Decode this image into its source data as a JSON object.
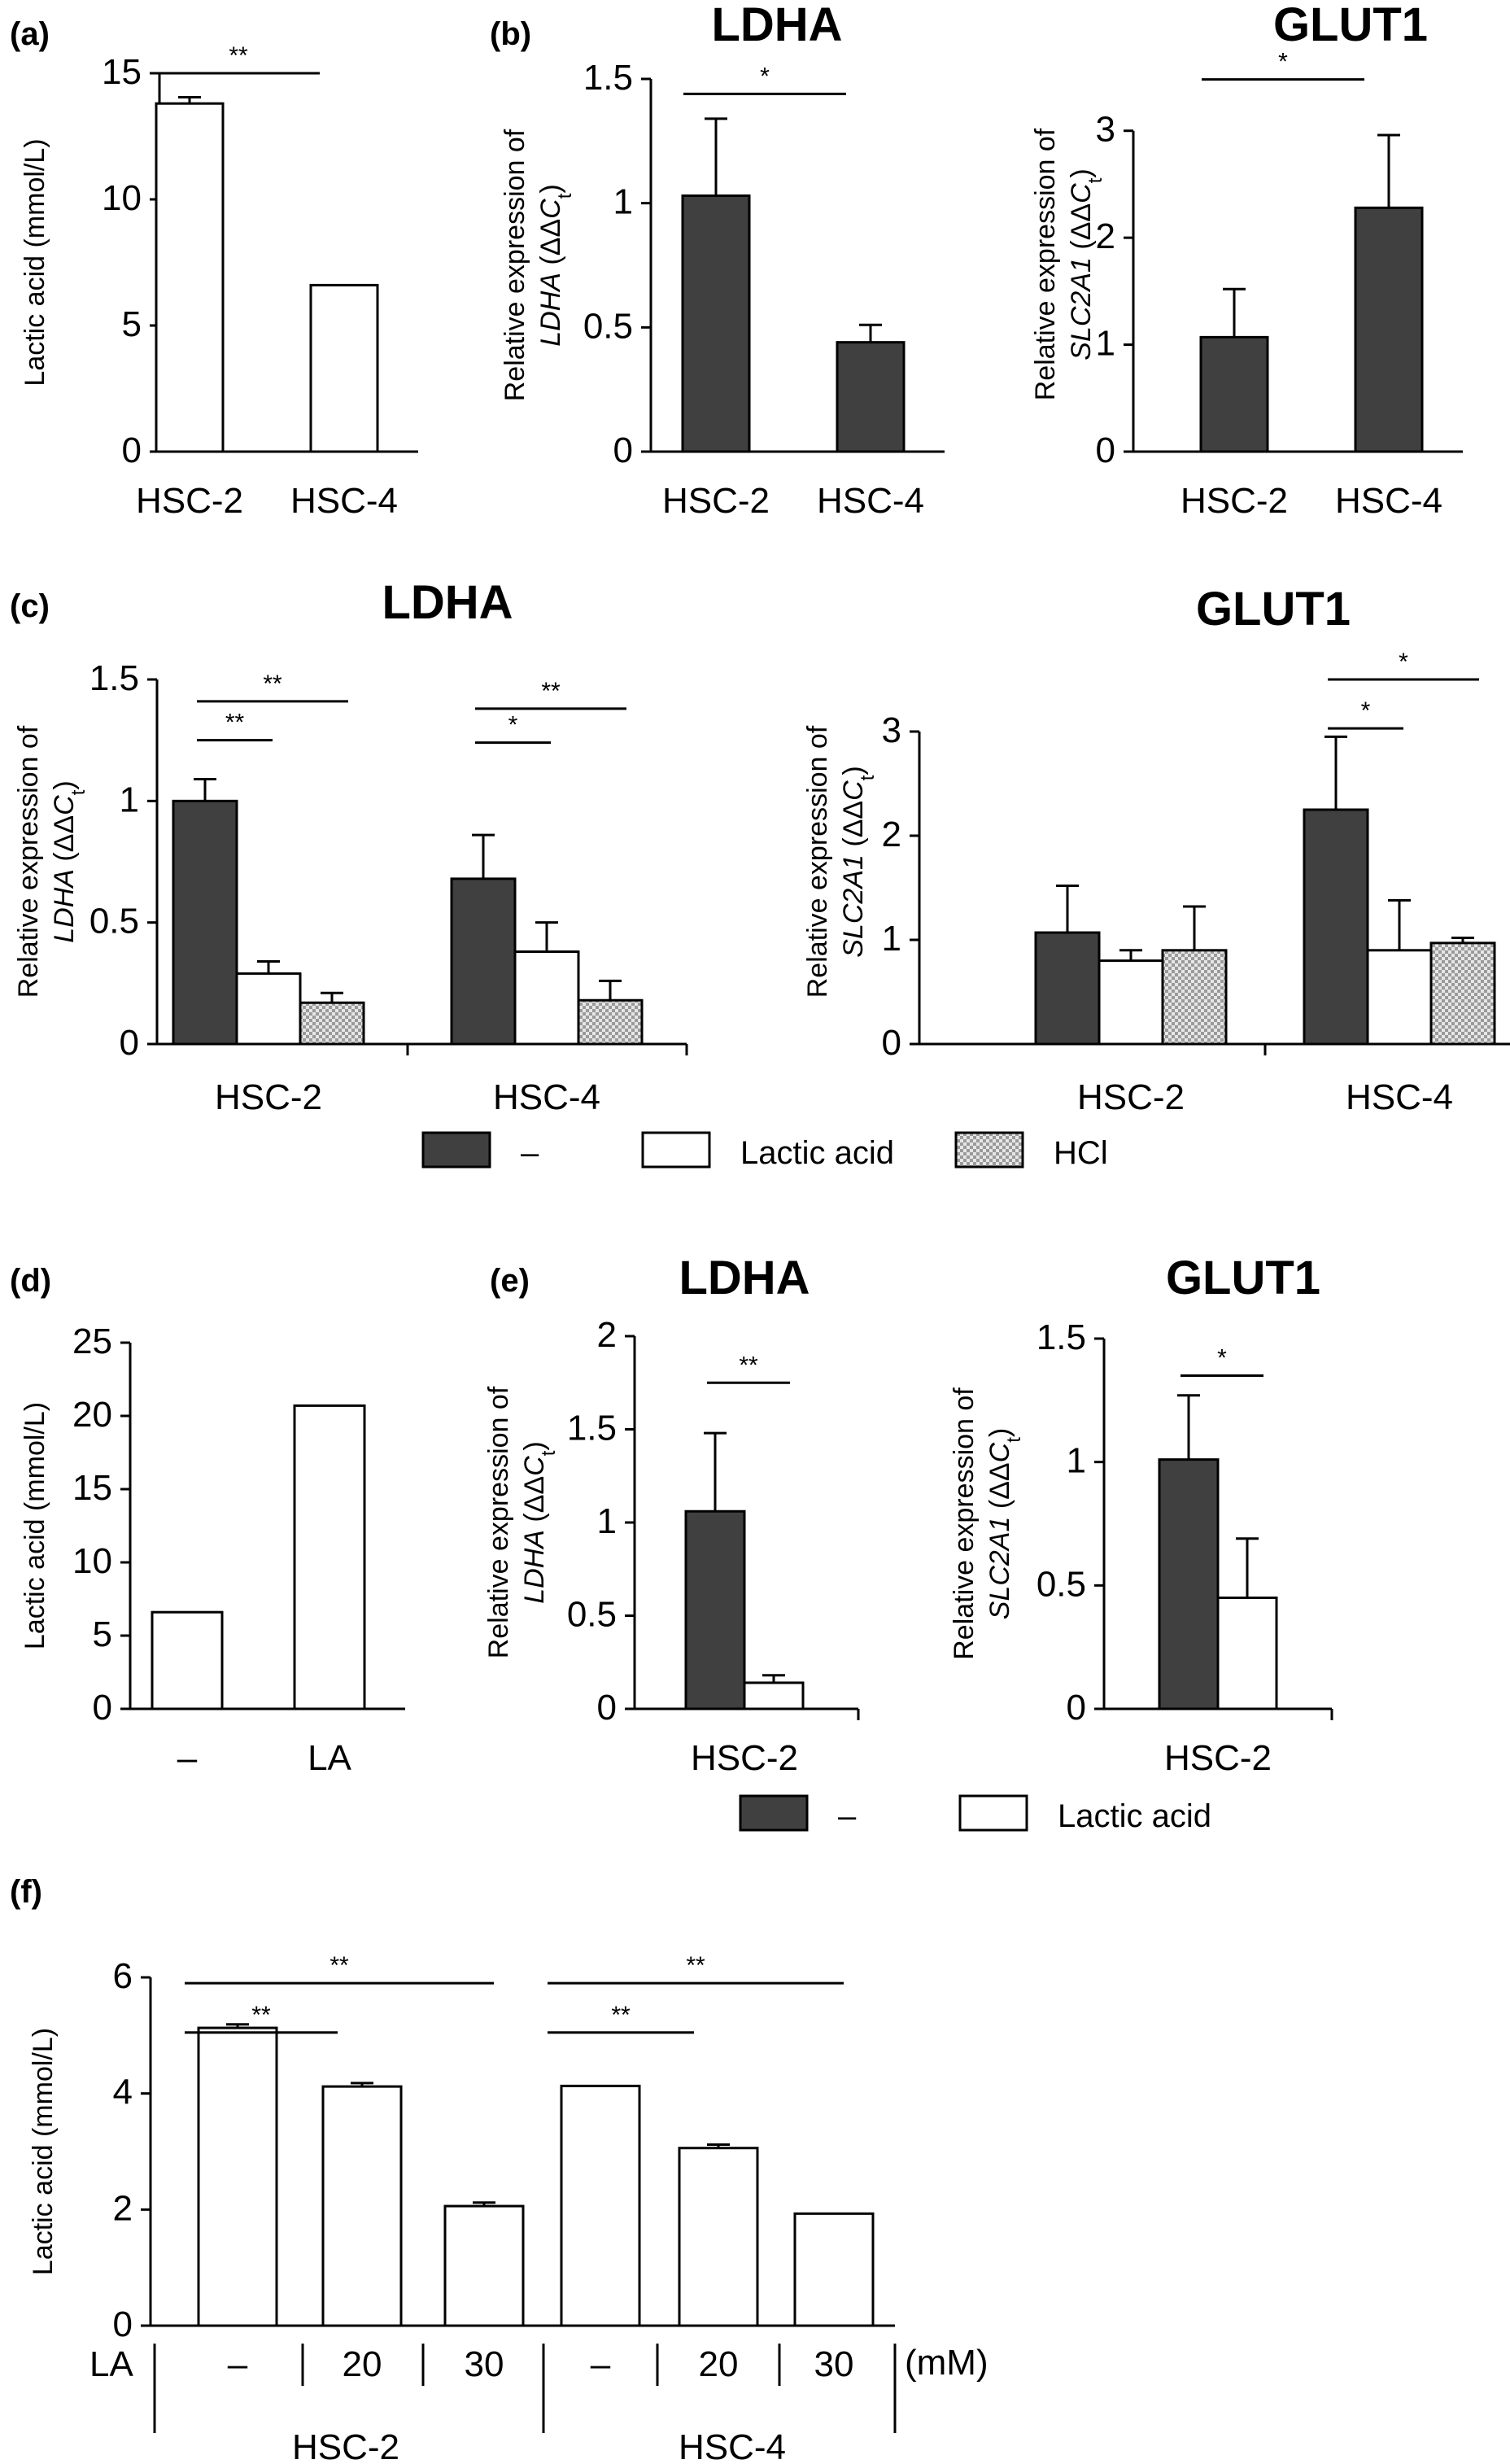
{
  "colors": {
    "dark": "#404040",
    "white": "#ffffff",
    "hcl_pattern": "#bdbdbd",
    "axis": "#000000"
  },
  "legend_c": [
    {
      "label": "–",
      "style": "dark"
    },
    {
      "label": "Lactic acid",
      "style": "white"
    },
    {
      "label": "HCl",
      "style": "hatch"
    }
  ],
  "legend_e": [
    {
      "label": "–",
      "style": "dark"
    },
    {
      "label": "Lactic acid",
      "style": "white"
    }
  ],
  "chart_data": [
    {
      "id": "a",
      "panel_label": "(a)",
      "type": "bar",
      "title": "",
      "ylabel": "Lactic acid (mmol/L)",
      "ylabel_prefix": "",
      "ylabel_italic": "",
      "ylim": [
        0,
        15
      ],
      "yticks": [
        0,
        5,
        10,
        15
      ],
      "ytick_labels": [
        "0",
        "5",
        "10",
        "15"
      ],
      "categories": [
        "HSC-2",
        "HSC-4"
      ],
      "xlabel": "",
      "series": [
        {
          "style": "white",
          "values": [
            13.8,
            6.6
          ],
          "errors": [
            0.25,
            0
          ]
        }
      ],
      "significance": [
        {
          "from": 0,
          "to": 1,
          "y": 15.0,
          "label": "**"
        }
      ]
    },
    {
      "id": "b1",
      "panel_label": "(b)",
      "type": "bar",
      "title": "LDHA",
      "ylabel": "Relative expression of",
      "ylabel_prefix": "",
      "ylabel_italic": "LDHA",
      "ylim": [
        0,
        1.5
      ],
      "yticks": [
        0,
        0.5,
        1,
        1.5
      ],
      "ytick_labels": [
        "0",
        "0.5",
        "1",
        "1.5"
      ],
      "categories": [
        "HSC-2",
        "HSC-4"
      ],
      "xlabel": "",
      "series": [
        {
          "style": "dark",
          "values": [
            1.03,
            0.44
          ],
          "errors": [
            0.31,
            0.07
          ]
        }
      ],
      "significance": [
        {
          "from": 0,
          "to": 1,
          "y": 1.44,
          "label": "*"
        }
      ]
    },
    {
      "id": "b2",
      "panel_label": "",
      "type": "bar",
      "title": "GLUT1",
      "ylabel": "Relative expression of",
      "ylabel_prefix": "",
      "ylabel_italic": "SLC2A1",
      "ylim": [
        0,
        3.5
      ],
      "yticks": [
        0,
        1,
        2,
        3
      ],
      "ytick_labels": [
        "0",
        "1",
        "2",
        "3"
      ],
      "categories": [
        "HSC-2",
        "HSC-4"
      ],
      "xlabel": "",
      "series": [
        {
          "style": "dark",
          "values": [
            1.07,
            2.28
          ],
          "errors": [
            0.45,
            0.68
          ]
        }
      ],
      "significance": [
        {
          "from": 0,
          "to": 1,
          "y": 3.48,
          "label": "*"
        }
      ]
    },
    {
      "id": "c1",
      "panel_label": "(c)",
      "type": "bar",
      "title": "LDHA",
      "ylabel": "Relative expression of",
      "ylabel_prefix": "",
      "ylabel_italic": "LDHA",
      "ylim": [
        0,
        1.5
      ],
      "yticks": [
        0,
        0.5,
        1,
        1.5
      ],
      "ytick_labels": [
        "0",
        "0.5",
        "1",
        "1.5"
      ],
      "categories": [
        "HSC-2",
        "HSC-4"
      ],
      "xlabel": "",
      "series": [
        {
          "name": "–",
          "style": "dark",
          "values": [
            1.0,
            0.68
          ],
          "errors": [
            0.09,
            0.18
          ]
        },
        {
          "name": "Lactic acid",
          "style": "white",
          "values": [
            0.29,
            0.38
          ],
          "errors": [
            0.05,
            0.12
          ]
        },
        {
          "name": "HCl",
          "style": "hatch",
          "values": [
            0.17,
            0.18
          ],
          "errors": [
            0.04,
            0.08
          ]
        }
      ],
      "significance": [
        {
          "group": 0,
          "from": 0,
          "to": 1,
          "y": 1.25,
          "label": "**"
        },
        {
          "group": 0,
          "from": 0,
          "to": 2,
          "y": 1.41,
          "label": "**"
        },
        {
          "group": 1,
          "from": 0,
          "to": 1,
          "y": 1.24,
          "label": "*"
        },
        {
          "group": 1,
          "from": 0,
          "to": 2,
          "y": 1.38,
          "label": "**"
        }
      ]
    },
    {
      "id": "c2",
      "panel_label": "",
      "type": "bar",
      "title": "GLUT1",
      "ylabel": "Relative expression of",
      "ylabel_prefix": "",
      "ylabel_italic": "SLC2A1",
      "ylim": [
        0,
        3.5
      ],
      "yticks": [
        0,
        1,
        2,
        3
      ],
      "ytick_labels": [
        "0",
        "1",
        "2",
        "3"
      ],
      "categories": [
        "HSC-2",
        "HSC-4"
      ],
      "xlabel": "",
      "series": [
        {
          "name": "–",
          "style": "dark",
          "values": [
            1.07,
            2.25
          ],
          "errors": [
            0.45,
            0.7
          ]
        },
        {
          "name": "Lactic acid",
          "style": "white",
          "values": [
            0.8,
            0.9
          ],
          "errors": [
            0.1,
            0.48
          ]
        },
        {
          "name": "HCl",
          "style": "hatch",
          "values": [
            0.9,
            0.97
          ],
          "errors": [
            0.42,
            0.05
          ]
        }
      ],
      "significance": [
        {
          "group": 1,
          "from": 0,
          "to": 1,
          "y": 3.03,
          "label": "*"
        },
        {
          "group": 1,
          "from": 0,
          "to": 2,
          "y": 3.5,
          "label": "*"
        }
      ]
    },
    {
      "id": "d",
      "panel_label": "(d)",
      "type": "bar",
      "title": "",
      "ylabel": "Lactic acid (mmol/L)",
      "ylabel_prefix": "",
      "ylabel_italic": "",
      "ylim": [
        0,
        25
      ],
      "yticks": [
        0,
        5,
        10,
        15,
        20,
        25
      ],
      "ytick_labels": [
        "0",
        "5",
        "10",
        "15",
        "20",
        "25"
      ],
      "categories": [
        "–",
        "LA"
      ],
      "xlabel": "",
      "series": [
        {
          "style": "white",
          "values": [
            6.6,
            20.7
          ],
          "errors": [
            0,
            0
          ]
        }
      ],
      "significance": []
    },
    {
      "id": "e1",
      "panel_label": "(e)",
      "type": "bar",
      "title": "LDHA",
      "ylabel": "Relative expression of",
      "ylabel_prefix": "",
      "ylabel_italic": "LDHA",
      "ylim": [
        0,
        2
      ],
      "yticks": [
        0,
        0.5,
        1,
        1.5,
        2
      ],
      "ytick_labels": [
        "0",
        "0.5",
        "1",
        "1.5",
        "2"
      ],
      "categories": [
        "HSC-2"
      ],
      "xlabel": "",
      "series": [
        {
          "name": "–",
          "style": "dark",
          "values": [
            1.06
          ],
          "errors": [
            0.42
          ]
        },
        {
          "name": "Lactic acid",
          "style": "white",
          "values": [
            0.14
          ],
          "errors": [
            0.04
          ]
        }
      ],
      "significance": [
        {
          "group": 0,
          "from": 0,
          "to": 1,
          "y": 1.75,
          "label": "**"
        }
      ]
    },
    {
      "id": "e2",
      "panel_label": "",
      "type": "bar",
      "title": "GLUT1",
      "ylabel": "Relative expression of",
      "ylabel_prefix": "",
      "ylabel_italic": "SLC2A1",
      "ylim": [
        0,
        1.5
      ],
      "yticks": [
        0,
        0.5,
        1,
        1.5
      ],
      "ytick_labels": [
        "0",
        "0.5",
        "1",
        "1.5"
      ],
      "categories": [
        "HSC-2"
      ],
      "xlabel": "",
      "series": [
        {
          "name": "–",
          "style": "dark",
          "values": [
            1.01
          ],
          "errors": [
            0.26
          ]
        },
        {
          "name": "Lactic acid",
          "style": "white",
          "values": [
            0.45
          ],
          "errors": [
            0.24
          ]
        }
      ],
      "significance": [
        {
          "group": 0,
          "from": 0,
          "to": 1,
          "y": 1.35,
          "label": "*"
        }
      ]
    },
    {
      "id": "f",
      "panel_label": "(f)",
      "type": "bar",
      "title": "",
      "ylabel": "Lactic acid (mmol/L)",
      "ylabel_prefix": "",
      "ylabel_italic": "",
      "ylim": [
        0,
        6
      ],
      "yticks": [
        0,
        2,
        4,
        6
      ],
      "ytick_labels": [
        "0",
        "2",
        "4",
        "6"
      ],
      "row_label": "LA",
      "unit_label": "(mM)",
      "categories": [
        "–",
        "20",
        "30",
        "–",
        "20",
        "30"
      ],
      "groups": [
        "HSC-2",
        "HSC-4"
      ],
      "series": [
        {
          "style": "white",
          "values": [
            5.13,
            4.12,
            2.06,
            4.13,
            3.06,
            1.93
          ],
          "errors": [
            0.06,
            0.06,
            0.06,
            0,
            0.06,
            0
          ]
        }
      ],
      "significance": [
        {
          "from": 0,
          "to": 1,
          "y": 5.05,
          "label": "**"
        },
        {
          "from": 0,
          "to": 2,
          "y": 5.9,
          "label": "**"
        },
        {
          "from": 3,
          "to": 4,
          "y": 5.05,
          "label": "**"
        },
        {
          "from": 3,
          "to": 5,
          "y": 5.9,
          "label": "**"
        }
      ]
    }
  ]
}
